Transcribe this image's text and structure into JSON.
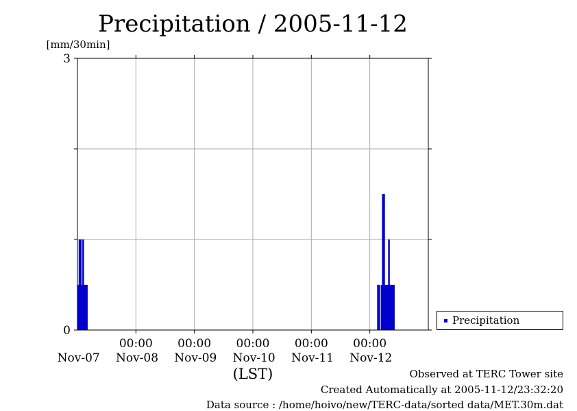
{
  "chart_data": {
    "type": "bar",
    "title": "Precipitation / 2005-11-12",
    "ylabel": "[mm/30min]",
    "xlabel": "(LST)",
    "ylim": [
      0,
      3
    ],
    "y_tick_labels": [
      "0",
      "3"
    ],
    "y_ticks": [
      0,
      1,
      2,
      3
    ],
    "x_tick_times": [
      "00:00",
      "00:00",
      "00:00",
      "00:00",
      "00:00"
    ],
    "x_tick_dates": [
      "Nov-07",
      "Nov-08",
      "Nov-09",
      "Nov-10",
      "Nov-11",
      "Nov-12"
    ],
    "x_range_hours": [
      0,
      144
    ],
    "grid": true,
    "legend_position": "right",
    "series": [
      {
        "name": "Precipitation",
        "color": "#0000cc",
        "x_hours": [
          0,
          0.5,
          1.0,
          1.5,
          2.0,
          2.5,
          3.0,
          3.5,
          123.0,
          123.5,
          124.5,
          125.0,
          125.5,
          126.0,
          126.5,
          127.0,
          127.5,
          128.0,
          128.5,
          129.0,
          129.5
        ],
        "values": [
          0.5,
          1.0,
          1.0,
          0.5,
          1.0,
          0.5,
          0.5,
          0.5,
          0.5,
          0.5,
          0.5,
          1.5,
          1.5,
          0.5,
          0.5,
          0.5,
          1.0,
          0.5,
          0.5,
          0.5,
          0.5
        ]
      }
    ]
  },
  "footer": {
    "site": "Observed at TERC Tower site",
    "created": "Created Automatically at 2005-11-12/23:32:20",
    "source": "Data source : /home/hoivo/new/TERC-data/sorted  data/MET.30m.dat"
  }
}
